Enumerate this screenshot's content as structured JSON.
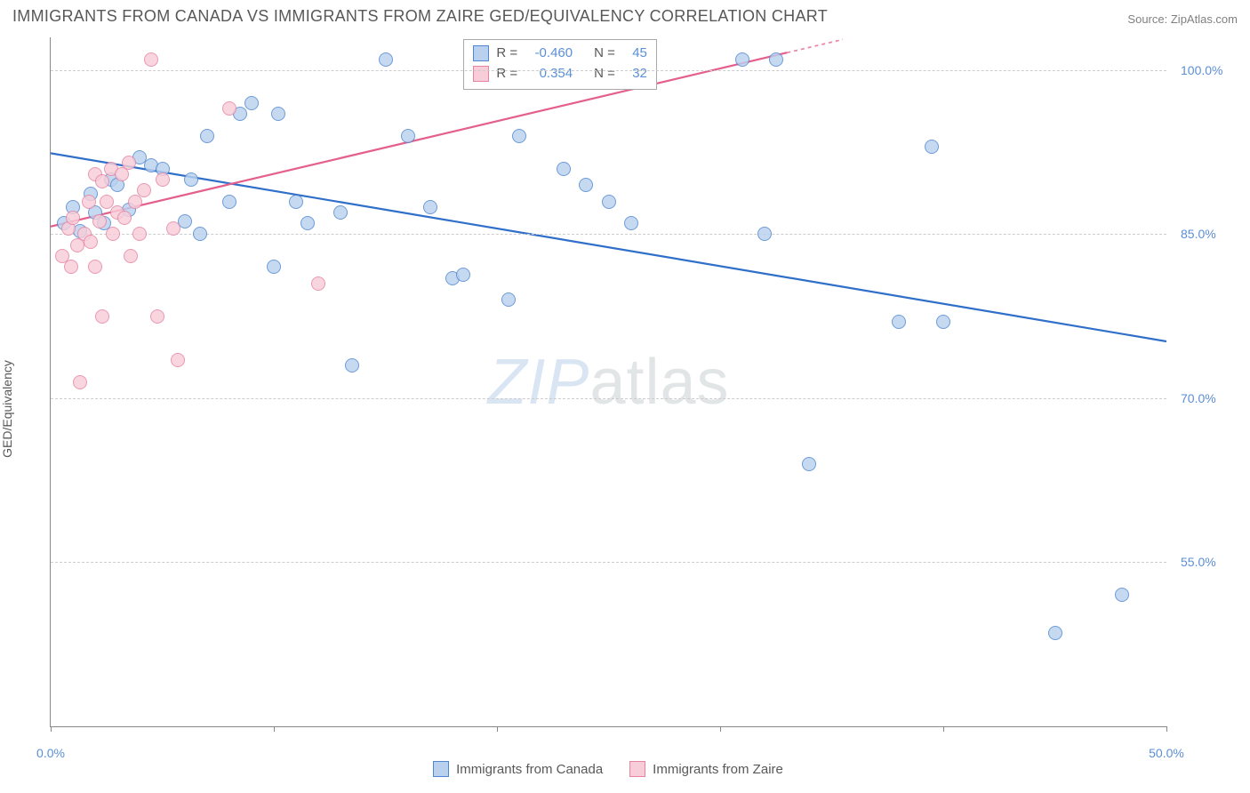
{
  "title": "IMMIGRANTS FROM CANADA VS IMMIGRANTS FROM ZAIRE GED/EQUIVALENCY CORRELATION CHART",
  "source_label": "Source:",
  "source_name": "ZipAtlas.com",
  "ylabel": "GED/Equivalency",
  "watermark": {
    "part1": "ZIP",
    "part2": "atlas"
  },
  "chart": {
    "type": "scatter",
    "background_color": "#ffffff",
    "grid_color": "#cccccc",
    "axis_color": "#888888",
    "tick_color_text": "#5b8fd6",
    "xlim": [
      0,
      50
    ],
    "ylim": [
      40,
      103
    ],
    "x_ticks": [
      0,
      10,
      20,
      30,
      40,
      50
    ],
    "x_tick_show_labels": [
      0,
      50
    ],
    "x_tick_labels": {
      "0": "0.0%",
      "50": "50.0%"
    },
    "y_ticks": [
      55,
      70,
      85,
      100
    ],
    "y_tick_labels": {
      "55": "55.0%",
      "70": "70.0%",
      "85": "85.0%",
      "100": "100.0%"
    },
    "marker_radius": 8,
    "marker_border_width": 1.2,
    "trend_line_width": 2.2,
    "series": [
      {
        "id": "canada",
        "label": "Immigrants from Canada",
        "fill": "#b9d1ef",
        "stroke": "#4f86cf",
        "trend_color": "#2f6fc9",
        "R": "-0.460",
        "N": "45",
        "trend": {
          "x1": 0,
          "y1": 92.4,
          "x2": 50,
          "y2": 75.2
        },
        "points": [
          [
            0.6,
            86.0
          ],
          [
            1.0,
            87.5
          ],
          [
            1.3,
            85.3
          ],
          [
            1.8,
            88.7
          ],
          [
            2.0,
            87.0
          ],
          [
            2.4,
            86.0
          ],
          [
            2.7,
            90.0
          ],
          [
            3.0,
            89.5
          ],
          [
            3.5,
            87.2
          ],
          [
            4.0,
            92.0
          ],
          [
            4.5,
            91.3
          ],
          [
            6.0,
            86.2
          ],
          [
            6.3,
            90.0
          ],
          [
            7.0,
            94.0
          ],
          [
            8.0,
            88.0
          ],
          [
            8.5,
            96.0
          ],
          [
            9.0,
            97.0
          ],
          [
            10.2,
            96.0
          ],
          [
            11.0,
            88.0
          ],
          [
            11.5,
            86.0
          ],
          [
            10.0,
            82.0
          ],
          [
            13.0,
            87.0
          ],
          [
            13.5,
            73.0
          ],
          [
            15.0,
            101.0
          ],
          [
            16.0,
            94.0
          ],
          [
            17.0,
            87.5
          ],
          [
            18.0,
            81.0
          ],
          [
            18.5,
            81.3
          ],
          [
            20.5,
            79.0
          ],
          [
            21.0,
            94.0
          ],
          [
            24.0,
            89.5
          ],
          [
            25.0,
            88.0
          ],
          [
            26.0,
            86.0
          ],
          [
            32.0,
            85.0
          ],
          [
            31.0,
            101.0
          ],
          [
            32.5,
            101.0
          ],
          [
            38.0,
            77.0
          ],
          [
            39.5,
            93.0
          ],
          [
            40.0,
            77.0
          ],
          [
            45.0,
            48.5
          ],
          [
            48.0,
            52.0
          ],
          [
            34.0,
            64.0
          ],
          [
            5.0,
            91.0
          ],
          [
            6.7,
            85.0
          ],
          [
            23.0,
            91.0
          ]
        ]
      },
      {
        "id": "zaire",
        "label": "Immigrants from Zaire",
        "fill": "#f7cdd9",
        "stroke": "#e583a1",
        "trend_color": "#e55f8d",
        "R": "0.354",
        "N": "32",
        "trend_dashed_from_x": 33,
        "trend": {
          "x1": 0,
          "y1": 85.7,
          "x2": 33,
          "y2": 101.6
        },
        "points": [
          [
            0.5,
            83.0
          ],
          [
            0.8,
            85.5
          ],
          [
            1.0,
            86.5
          ],
          [
            1.2,
            84.0
          ],
          [
            1.5,
            85.0
          ],
          [
            1.7,
            88.0
          ],
          [
            1.8,
            84.3
          ],
          [
            2.0,
            90.5
          ],
          [
            2.2,
            86.2
          ],
          [
            2.3,
            89.8
          ],
          [
            2.5,
            88.0
          ],
          [
            2.7,
            91.0
          ],
          [
            2.8,
            85.0
          ],
          [
            3.0,
            87.0
          ],
          [
            3.3,
            86.5
          ],
          [
            3.5,
            91.5
          ],
          [
            3.6,
            83.0
          ],
          [
            4.0,
            85.0
          ],
          [
            4.2,
            89.0
          ],
          [
            4.5,
            101.0
          ],
          [
            4.8,
            77.5
          ],
          [
            5.5,
            85.5
          ],
          [
            5.7,
            73.5
          ],
          [
            5.0,
            90.0
          ],
          [
            2.0,
            82.0
          ],
          [
            1.3,
            71.5
          ],
          [
            0.9,
            82.0
          ],
          [
            8.0,
            96.5
          ],
          [
            12.0,
            80.5
          ],
          [
            3.2,
            90.5
          ],
          [
            3.8,
            88.0
          ],
          [
            2.3,
            77.5
          ]
        ]
      }
    ]
  },
  "stat_box": {
    "R_label": "R =",
    "N_label": "N ="
  }
}
